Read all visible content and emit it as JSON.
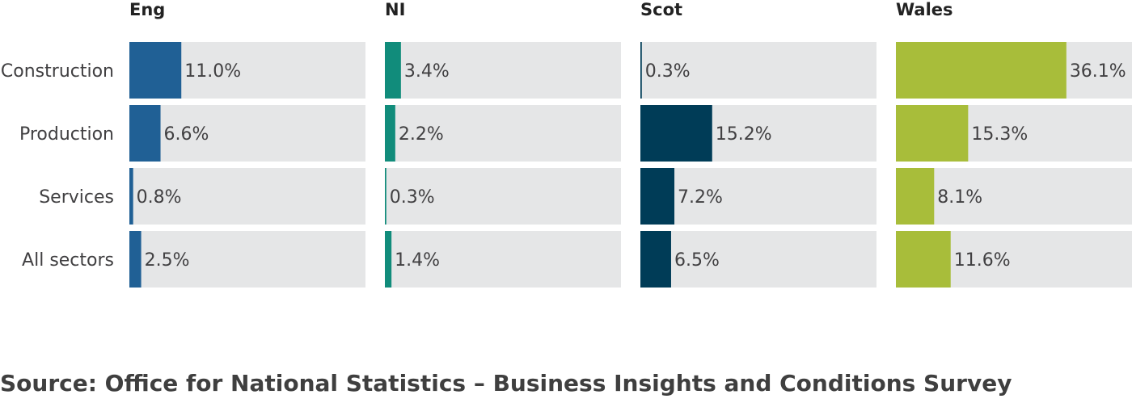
{
  "chart_data": {
    "type": "bar",
    "orientation": "horizontal",
    "layout": "small-multiples",
    "categories": [
      "Construction",
      "Production",
      "Services",
      "All sectors"
    ],
    "xlim": [
      0,
      50
    ],
    "grid": false,
    "value_suffix": "%",
    "panels": [
      {
        "name": "Eng",
        "color": "#206095",
        "values": [
          11.0,
          6.6,
          0.8,
          2.5
        ]
      },
      {
        "name": "NI",
        "color": "#118c7b",
        "values": [
          3.4,
          2.2,
          0.3,
          1.4
        ]
      },
      {
        "name": "Scot",
        "color": "#003c57",
        "values": [
          0.3,
          15.2,
          7.2,
          6.5
        ]
      },
      {
        "name": "Wales",
        "color": "#a8bd3a",
        "values": [
          36.1,
          15.3,
          8.1,
          11.6
        ]
      }
    ],
    "track_color": "#e5e6e7"
  },
  "source": "Source: Office for National Statistics – Business Insights and Conditions Survey"
}
